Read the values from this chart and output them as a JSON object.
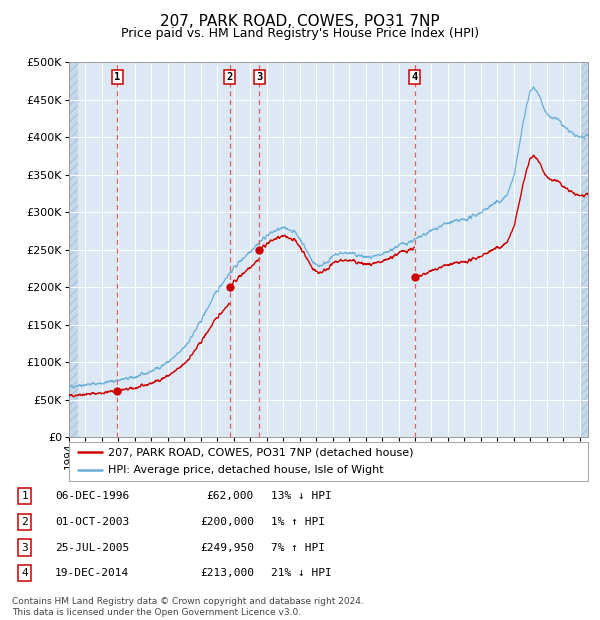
{
  "title": "207, PARK ROAD, COWES, PO31 7NP",
  "subtitle": "Price paid vs. HM Land Registry's House Price Index (HPI)",
  "title_fontsize": 11,
  "subtitle_fontsize": 9,
  "plot_bg_color": "#dce9f5",
  "ylim": [
    0,
    500000
  ],
  "yticks": [
    0,
    50000,
    100000,
    150000,
    200000,
    250000,
    300000,
    350000,
    400000,
    450000,
    500000
  ],
  "transactions": [
    {
      "date_x": 1996.93,
      "price": 62000,
      "label": "1"
    },
    {
      "date_x": 2003.75,
      "price": 200000,
      "label": "2"
    },
    {
      "date_x": 2005.56,
      "price": 249950,
      "label": "3"
    },
    {
      "date_x": 2014.97,
      "price": 213000,
      "label": "4"
    }
  ],
  "legend_property_label": "207, PARK ROAD, COWES, PO31 7NP (detached house)",
  "legend_hpi_label": "HPI: Average price, detached house, Isle of Wight",
  "table_rows": [
    {
      "num": "1",
      "date": "06-DEC-1996",
      "price": "£62,000",
      "hpi": "13% ↓ HPI"
    },
    {
      "num": "2",
      "date": "01-OCT-2003",
      "price": "£200,000",
      "hpi": "1% ↑ HPI"
    },
    {
      "num": "3",
      "date": "25-JUL-2005",
      "price": "£249,950",
      "hpi": "7% ↑ HPI"
    },
    {
      "num": "4",
      "date": "19-DEC-2014",
      "price": "£213,000",
      "hpi": "21% ↓ HPI"
    }
  ],
  "footnote": "Contains HM Land Registry data © Crown copyright and database right 2024.\nThis data is licensed under the Open Government Licence v3.0.",
  "hpi_color": "#6baed6",
  "property_color": "#cc0000",
  "vline_color": "#e05050",
  "marker_color": "#cc0000",
  "xmin": 1994.0,
  "xmax": 2025.5
}
